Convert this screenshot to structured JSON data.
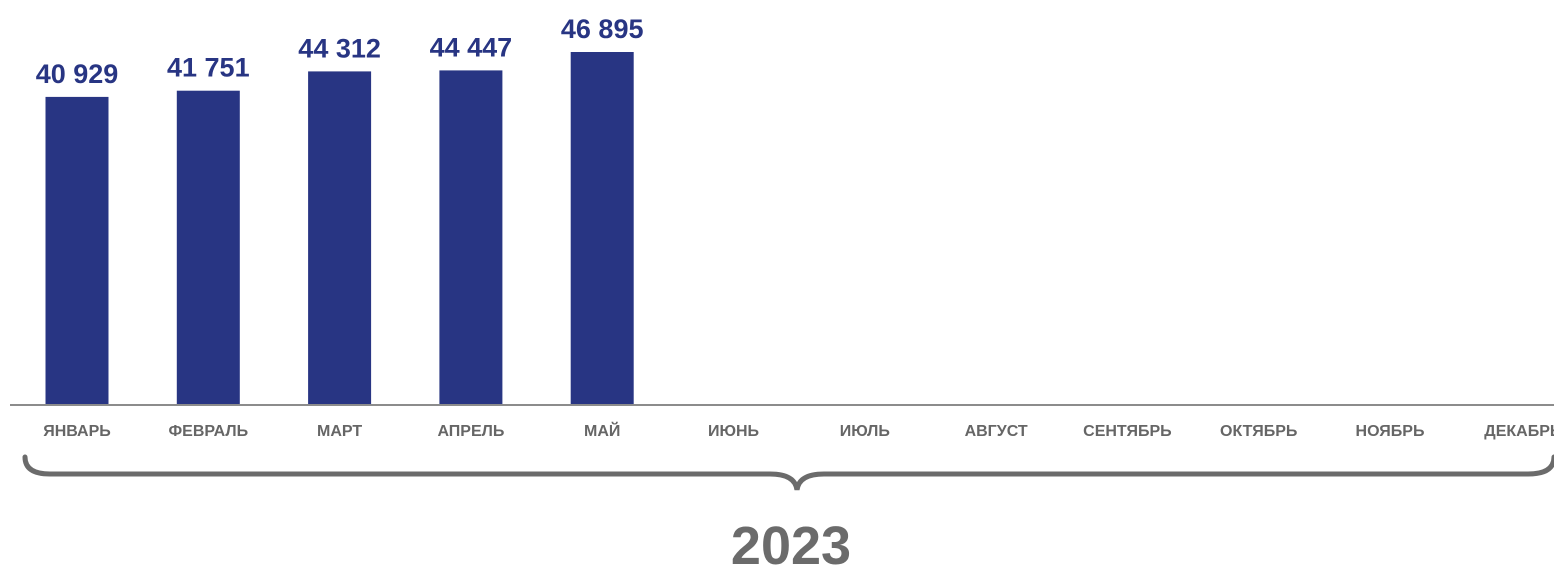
{
  "chart_data": {
    "type": "bar",
    "categories": [
      "ЯНВАРЬ",
      "ФЕВРАЛЬ",
      "МАРТ",
      "АПРЕЛЬ",
      "МАЙ",
      "ИЮНЬ",
      "ИЮЛЬ",
      "АВГУСТ",
      "СЕНТЯБРЬ",
      "ОКТЯБРЬ",
      "НОЯБРЬ",
      "ДЕКАБРЬ"
    ],
    "values": [
      40929,
      41751,
      44312,
      44447,
      46895,
      null,
      null,
      null,
      null,
      null,
      null,
      null
    ],
    "data_labels": [
      "40 929",
      "41 751",
      "44 312",
      "44 447",
      "46 895",
      "",
      "",
      "",
      "",
      "",
      "",
      ""
    ],
    "title": "",
    "xlabel": "",
    "ylabel": "",
    "grid": false,
    "legend": "none"
  },
  "group_label": "2023",
  "colors": {
    "bar": "#283583",
    "value_text": "#283583",
    "axis": "#8c8c8c",
    "category_text": "#666666",
    "brace": "#6b6b6b",
    "year_text": "#6b6b6b"
  }
}
